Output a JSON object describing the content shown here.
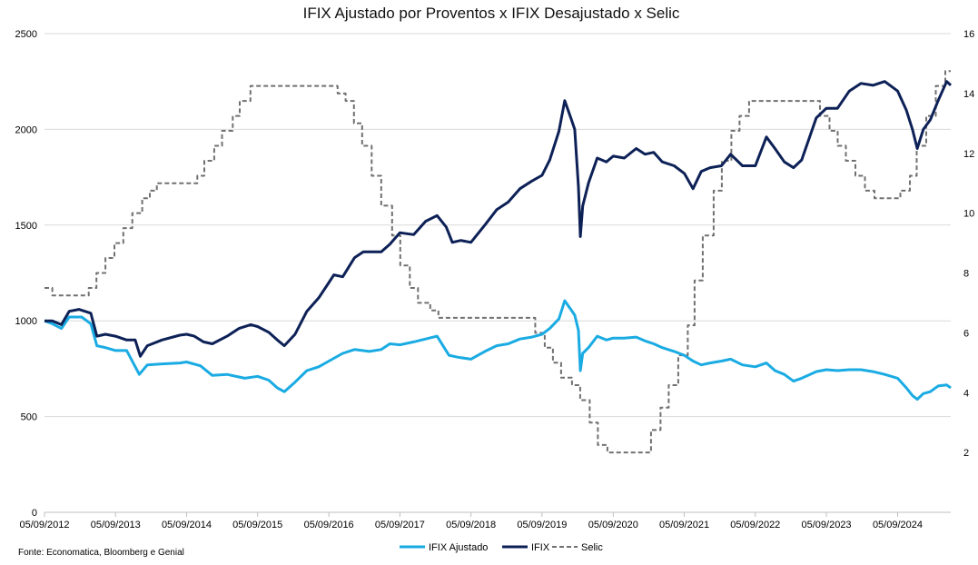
{
  "chart_data": {
    "type": "line",
    "title": "IFIX Ajustado por Proventos x IFIX Desajustado x Selic",
    "source": "Fonte: Economatica, Bloomberg e Genial",
    "x_domain": [
      "2012-09-05",
      "2025-06-05"
    ],
    "ylim_left": [
      0,
      2500
    ],
    "ylim_right": [
      0,
      16
    ],
    "y_ticks_left": [
      "0",
      "500",
      "1000",
      "1500",
      "2000",
      "2500"
    ],
    "y_ticks_right": [
      "2",
      "4",
      "6",
      "8",
      "10",
      "12",
      "14",
      "16"
    ],
    "x_tick_labels": [
      "05/09/2012",
      "05/09/2013",
      "05/09/2014",
      "05/09/2015",
      "05/09/2016",
      "05/09/2017",
      "05/09/2018",
      "05/09/2019",
      "05/09/2020",
      "05/09/2021",
      "05/09/2022",
      "05/09/2023",
      "05/09/2024"
    ],
    "grid": "horizontal",
    "legend_position": "bottom",
    "series": [
      {
        "name": "IFIX Ajustado",
        "color": "#1AABE3",
        "axis": "left",
        "points": [
          [
            "2012-09-05",
            1000
          ],
          [
            "2012-10-15",
            985
          ],
          [
            "2012-12-01",
            960
          ],
          [
            "2013-01-10",
            1020
          ],
          [
            "2013-03-15",
            1020
          ],
          [
            "2013-05-01",
            985
          ],
          [
            "2013-06-01",
            870
          ],
          [
            "2013-07-15",
            860
          ],
          [
            "2013-09-05",
            845
          ],
          [
            "2013-11-01",
            845
          ],
          [
            "2014-01-05",
            720
          ],
          [
            "2014-02-15",
            770
          ],
          [
            "2014-05-01",
            775
          ],
          [
            "2014-08-01",
            780
          ],
          [
            "2014-09-05",
            785
          ],
          [
            "2014-11-15",
            765
          ],
          [
            "2015-01-15",
            715
          ],
          [
            "2015-04-01",
            720
          ],
          [
            "2015-07-01",
            700
          ],
          [
            "2015-09-05",
            710
          ],
          [
            "2015-11-01",
            690
          ],
          [
            "2015-12-15",
            650
          ],
          [
            "2016-01-20",
            630
          ],
          [
            "2016-03-15",
            680
          ],
          [
            "2016-05-15",
            740
          ],
          [
            "2016-07-15",
            760
          ],
          [
            "2016-09-05",
            790
          ],
          [
            "2016-11-15",
            830
          ],
          [
            "2017-01-15",
            850
          ],
          [
            "2017-04-01",
            840
          ],
          [
            "2017-06-01",
            850
          ],
          [
            "2017-07-15",
            880
          ],
          [
            "2017-09-05",
            875
          ],
          [
            "2017-11-15",
            890
          ],
          [
            "2018-01-15",
            905
          ],
          [
            "2018-03-15",
            920
          ],
          [
            "2018-05-15",
            820
          ],
          [
            "2018-07-01",
            810
          ],
          [
            "2018-09-05",
            800
          ],
          [
            "2018-11-15",
            840
          ],
          [
            "2019-01-15",
            870
          ],
          [
            "2019-03-15",
            880
          ],
          [
            "2019-05-15",
            905
          ],
          [
            "2019-07-15",
            915
          ],
          [
            "2019-09-05",
            930
          ],
          [
            "2019-10-15",
            960
          ],
          [
            "2019-12-01",
            1010
          ],
          [
            "2019-12-31",
            1105
          ],
          [
            "2020-01-31",
            1060
          ],
          [
            "2020-02-20",
            1030
          ],
          [
            "2020-03-10",
            950
          ],
          [
            "2020-03-20",
            740
          ],
          [
            "2020-04-01",
            830
          ],
          [
            "2020-05-01",
            860
          ],
          [
            "2020-06-15",
            920
          ],
          [
            "2020-08-01",
            900
          ],
          [
            "2020-09-05",
            910
          ],
          [
            "2020-11-01",
            910
          ],
          [
            "2021-01-01",
            915
          ],
          [
            "2021-02-15",
            895
          ],
          [
            "2021-04-01",
            880
          ],
          [
            "2021-05-15",
            860
          ],
          [
            "2021-07-15",
            840
          ],
          [
            "2021-09-05",
            820
          ],
          [
            "2021-10-20",
            790
          ],
          [
            "2021-12-01",
            770
          ],
          [
            "2022-01-15",
            780
          ],
          [
            "2022-03-15",
            790
          ],
          [
            "2022-05-01",
            800
          ],
          [
            "2022-07-01",
            770
          ],
          [
            "2022-09-05",
            760
          ],
          [
            "2022-11-01",
            780
          ],
          [
            "2022-12-15",
            740
          ],
          [
            "2023-02-01",
            720
          ],
          [
            "2023-03-20",
            685
          ],
          [
            "2023-05-01",
            700
          ],
          [
            "2023-07-15",
            735
          ],
          [
            "2023-09-05",
            745
          ],
          [
            "2023-11-01",
            740
          ],
          [
            "2024-01-01",
            745
          ],
          [
            "2024-03-01",
            745
          ],
          [
            "2024-05-01",
            735
          ],
          [
            "2024-07-01",
            720
          ],
          [
            "2024-09-05",
            700
          ],
          [
            "2024-10-20",
            650
          ],
          [
            "2024-11-20",
            610
          ],
          [
            "2024-12-15",
            590
          ],
          [
            "2025-01-15",
            620
          ],
          [
            "2025-02-20",
            630
          ],
          [
            "2025-04-01",
            660
          ],
          [
            "2025-05-15",
            665
          ],
          [
            "2025-06-05",
            650
          ]
        ]
      },
      {
        "name": "IFIX",
        "color": "#0D2157",
        "axis": "left",
        "points": [
          [
            "2012-09-05",
            1000
          ],
          [
            "2012-10-15",
            1000
          ],
          [
            "2012-12-01",
            980
          ],
          [
            "2013-01-10",
            1050
          ],
          [
            "2013-03-01",
            1060
          ],
          [
            "2013-05-01",
            1040
          ],
          [
            "2013-06-01",
            920
          ],
          [
            "2013-07-15",
            930
          ],
          [
            "2013-09-05",
            920
          ],
          [
            "2013-11-01",
            900
          ],
          [
            "2013-12-15",
            900
          ],
          [
            "2014-01-10",
            815
          ],
          [
            "2014-02-15",
            870
          ],
          [
            "2014-05-01",
            900
          ],
          [
            "2014-08-01",
            925
          ],
          [
            "2014-09-05",
            930
          ],
          [
            "2014-10-15",
            920
          ],
          [
            "2014-12-01",
            890
          ],
          [
            "2015-01-15",
            880
          ],
          [
            "2015-04-01",
            920
          ],
          [
            "2015-06-01",
            960
          ],
          [
            "2015-08-01",
            980
          ],
          [
            "2015-09-05",
            970
          ],
          [
            "2015-11-01",
            940
          ],
          [
            "2015-12-15",
            900
          ],
          [
            "2016-01-20",
            870
          ],
          [
            "2016-03-15",
            930
          ],
          [
            "2016-05-15",
            1050
          ],
          [
            "2016-07-15",
            1120
          ],
          [
            "2016-09-05",
            1200
          ],
          [
            "2016-10-01",
            1240
          ],
          [
            "2016-11-15",
            1230
          ],
          [
            "2017-01-15",
            1330
          ],
          [
            "2017-03-01",
            1360
          ],
          [
            "2017-06-01",
            1360
          ],
          [
            "2017-07-15",
            1400
          ],
          [
            "2017-09-05",
            1460
          ],
          [
            "2017-11-15",
            1450
          ],
          [
            "2018-01-15",
            1520
          ],
          [
            "2018-03-15",
            1550
          ],
          [
            "2018-05-01",
            1490
          ],
          [
            "2018-06-01",
            1410
          ],
          [
            "2018-07-15",
            1420
          ],
          [
            "2018-09-05",
            1410
          ],
          [
            "2018-11-15",
            1500
          ],
          [
            "2019-01-15",
            1580
          ],
          [
            "2019-03-15",
            1620
          ],
          [
            "2019-05-15",
            1690
          ],
          [
            "2019-07-15",
            1730
          ],
          [
            "2019-09-05",
            1760
          ],
          [
            "2019-10-15",
            1840
          ],
          [
            "2019-12-01",
            1990
          ],
          [
            "2019-12-31",
            2150
          ],
          [
            "2020-01-31",
            2060
          ],
          [
            "2020-02-20",
            2000
          ],
          [
            "2020-03-10",
            1700
          ],
          [
            "2020-03-20",
            1440
          ],
          [
            "2020-04-01",
            1600
          ],
          [
            "2020-05-01",
            1720
          ],
          [
            "2020-06-15",
            1850
          ],
          [
            "2020-08-01",
            1830
          ],
          [
            "2020-09-05",
            1860
          ],
          [
            "2020-11-01",
            1850
          ],
          [
            "2021-01-01",
            1900
          ],
          [
            "2021-02-15",
            1870
          ],
          [
            "2021-04-01",
            1880
          ],
          [
            "2021-05-15",
            1830
          ],
          [
            "2021-07-15",
            1810
          ],
          [
            "2021-09-05",
            1770
          ],
          [
            "2021-10-20",
            1690
          ],
          [
            "2021-12-01",
            1780
          ],
          [
            "2022-01-15",
            1800
          ],
          [
            "2022-03-15",
            1810
          ],
          [
            "2022-05-01",
            1870
          ],
          [
            "2022-07-01",
            1810
          ],
          [
            "2022-09-05",
            1810
          ],
          [
            "2022-11-01",
            1960
          ],
          [
            "2022-12-15",
            1900
          ],
          [
            "2023-02-01",
            1830
          ],
          [
            "2023-03-20",
            1800
          ],
          [
            "2023-05-01",
            1840
          ],
          [
            "2023-07-15",
            2060
          ],
          [
            "2023-09-05",
            2110
          ],
          [
            "2023-11-01",
            2110
          ],
          [
            "2024-01-01",
            2200
          ],
          [
            "2024-03-01",
            2240
          ],
          [
            "2024-05-01",
            2230
          ],
          [
            "2024-07-01",
            2250
          ],
          [
            "2024-09-05",
            2200
          ],
          [
            "2024-10-20",
            2100
          ],
          [
            "2024-11-20",
            2000
          ],
          [
            "2024-12-15",
            1900
          ],
          [
            "2025-01-15",
            2000
          ],
          [
            "2025-02-20",
            2050
          ],
          [
            "2025-04-01",
            2150
          ],
          [
            "2025-05-15",
            2250
          ],
          [
            "2025-06-05",
            2230
          ]
        ]
      },
      {
        "name": "Selic",
        "color": "#707070",
        "axis": "right",
        "dash": "5,3",
        "points": [
          [
            "2012-09-05",
            7.5
          ],
          [
            "2012-10-15",
            7.25
          ],
          [
            "2013-04-20",
            7.5
          ],
          [
            "2013-05-30",
            8.0
          ],
          [
            "2013-07-15",
            8.5
          ],
          [
            "2013-08-30",
            9.0
          ],
          [
            "2013-10-15",
            9.5
          ],
          [
            "2013-11-30",
            10.0
          ],
          [
            "2014-01-20",
            10.5
          ],
          [
            "2014-02-28",
            10.75
          ],
          [
            "2014-04-05",
            11.0
          ],
          [
            "2014-10-30",
            11.25
          ],
          [
            "2014-12-05",
            11.75
          ],
          [
            "2015-01-25",
            12.25
          ],
          [
            "2015-03-06",
            12.75
          ],
          [
            "2015-04-30",
            13.25
          ],
          [
            "2015-06-05",
            13.75
          ],
          [
            "2015-07-30",
            14.25
          ],
          [
            "2016-10-20",
            14.0
          ],
          [
            "2016-11-30",
            13.75
          ],
          [
            "2017-01-12",
            13.0
          ],
          [
            "2017-02-23",
            12.25
          ],
          [
            "2017-04-13",
            11.25
          ],
          [
            "2017-06-01",
            10.25
          ],
          [
            "2017-07-27",
            9.25
          ],
          [
            "2017-09-07",
            8.25
          ],
          [
            "2017-10-26",
            7.5
          ],
          [
            "2017-12-07",
            7.0
          ],
          [
            "2018-02-08",
            6.75
          ],
          [
            "2018-03-22",
            6.5
          ],
          [
            "2019-08-01",
            6.0
          ],
          [
            "2019-09-19",
            5.5
          ],
          [
            "2019-10-31",
            5.0
          ],
          [
            "2019-12-12",
            4.5
          ],
          [
            "2020-02-06",
            4.25
          ],
          [
            "2020-03-19",
            3.75
          ],
          [
            "2020-05-07",
            3.0
          ],
          [
            "2020-06-18",
            2.25
          ],
          [
            "2020-08-06",
            2.0
          ],
          [
            "2021-03-18",
            2.75
          ],
          [
            "2021-05-06",
            3.5
          ],
          [
            "2021-06-17",
            4.25
          ],
          [
            "2021-08-05",
            5.25
          ],
          [
            "2021-09-23",
            6.25
          ],
          [
            "2021-10-28",
            7.75
          ],
          [
            "2021-12-09",
            9.25
          ],
          [
            "2022-02-03",
            10.75
          ],
          [
            "2022-03-17",
            11.75
          ],
          [
            "2022-05-05",
            12.75
          ],
          [
            "2022-06-16",
            13.25
          ],
          [
            "2022-08-04",
            13.75
          ],
          [
            "2023-08-03",
            13.25
          ],
          [
            "2023-09-21",
            12.75
          ],
          [
            "2023-11-02",
            12.25
          ],
          [
            "2023-12-14",
            11.75
          ],
          [
            "2024-02-01",
            11.25
          ],
          [
            "2024-03-21",
            10.75
          ],
          [
            "2024-05-09",
            10.5
          ],
          [
            "2024-09-19",
            10.75
          ],
          [
            "2024-11-07",
            11.25
          ],
          [
            "2024-12-12",
            12.25
          ],
          [
            "2025-01-30",
            13.25
          ],
          [
            "2025-03-20",
            14.25
          ],
          [
            "2025-05-08",
            14.75
          ],
          [
            "2025-06-05",
            14.75
          ]
        ]
      }
    ]
  }
}
